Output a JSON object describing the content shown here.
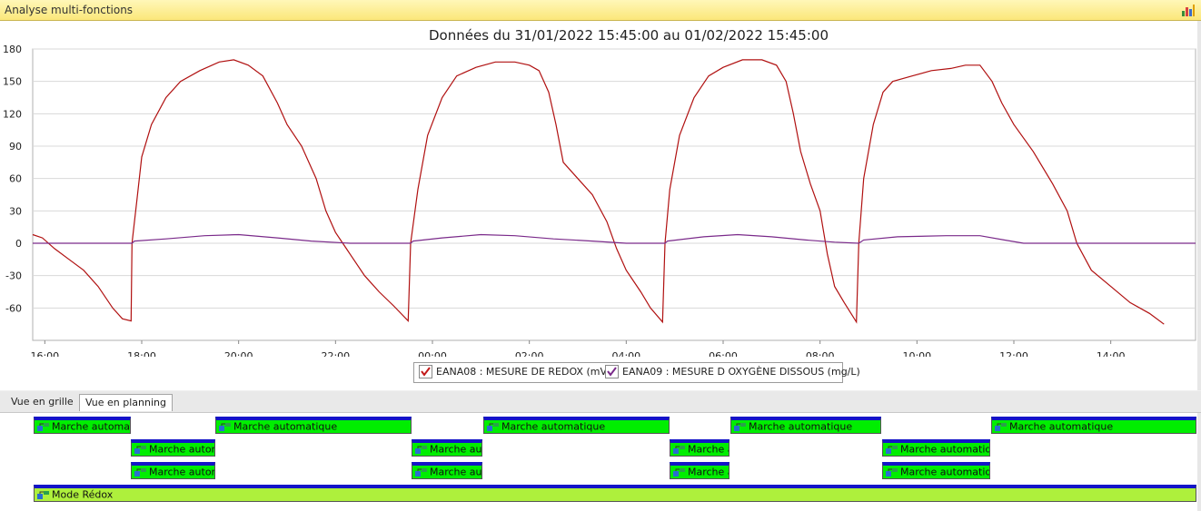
{
  "window": {
    "title": "Analyse multi-fonctions",
    "icon": "bar-chart-icon"
  },
  "chart_data": {
    "type": "line",
    "title": "Données du 31/01/2022 15:45:00 au 01/02/2022 15:45:00",
    "xlabel": "",
    "ylabel": "",
    "x_range_hours": [
      15.75,
      39.75
    ],
    "xticks": [
      {
        "label": "16:00",
        "h": 16
      },
      {
        "label": "18:00",
        "h": 18
      },
      {
        "label": "20:00",
        "h": 20
      },
      {
        "label": "22:00",
        "h": 22
      },
      {
        "label": "00:00",
        "h": 24
      },
      {
        "label": "02:00",
        "h": 26
      },
      {
        "label": "04:00",
        "h": 28
      },
      {
        "label": "06:00",
        "h": 30
      },
      {
        "label": "08:00",
        "h": 32
      },
      {
        "label": "10:00",
        "h": 34
      },
      {
        "label": "12:00",
        "h": 36
      },
      {
        "label": "14:00",
        "h": 38
      }
    ],
    "ylim": [
      -90,
      180
    ],
    "yticks": [
      180,
      150,
      120,
      90,
      60,
      30,
      0,
      -30,
      -60
    ],
    "grid": true,
    "legend_position": "bottom",
    "series": [
      {
        "name": "EANA08 : MESURE DE REDOX (mV)",
        "color": "#b01010",
        "points": [
          [
            15.75,
            8
          ],
          [
            15.95,
            5
          ],
          [
            16.2,
            -5
          ],
          [
            16.5,
            -15
          ],
          [
            16.8,
            -25
          ],
          [
            17.1,
            -40
          ],
          [
            17.4,
            -60
          ],
          [
            17.6,
            -70
          ],
          [
            17.78,
            -72
          ],
          [
            17.8,
            0
          ],
          [
            17.9,
            40
          ],
          [
            18.0,
            80
          ],
          [
            18.2,
            110
          ],
          [
            18.5,
            135
          ],
          [
            18.8,
            150
          ],
          [
            19.2,
            160
          ],
          [
            19.6,
            168
          ],
          [
            19.9,
            170
          ],
          [
            20.2,
            165
          ],
          [
            20.5,
            155
          ],
          [
            20.8,
            130
          ],
          [
            21.0,
            110
          ],
          [
            21.3,
            90
          ],
          [
            21.6,
            60
          ],
          [
            21.8,
            30
          ],
          [
            22.0,
            10
          ],
          [
            22.3,
            -10
          ],
          [
            22.6,
            -30
          ],
          [
            22.9,
            -45
          ],
          [
            23.2,
            -58
          ],
          [
            23.5,
            -72
          ],
          [
            23.55,
            0
          ],
          [
            23.7,
            50
          ],
          [
            23.9,
            100
          ],
          [
            24.2,
            135
          ],
          [
            24.5,
            155
          ],
          [
            24.9,
            163
          ],
          [
            25.3,
            168
          ],
          [
            25.7,
            168
          ],
          [
            26.0,
            165
          ],
          [
            26.2,
            160
          ],
          [
            26.4,
            140
          ],
          [
            26.55,
            110
          ],
          [
            26.7,
            75
          ],
          [
            27.0,
            60
          ],
          [
            27.3,
            45
          ],
          [
            27.6,
            20
          ],
          [
            27.8,
            -5
          ],
          [
            28.0,
            -25
          ],
          [
            28.3,
            -45
          ],
          [
            28.5,
            -60
          ],
          [
            28.75,
            -73
          ],
          [
            28.8,
            0
          ],
          [
            28.9,
            50
          ],
          [
            29.1,
            100
          ],
          [
            29.4,
            135
          ],
          [
            29.7,
            155
          ],
          [
            30.0,
            163
          ],
          [
            30.4,
            170
          ],
          [
            30.8,
            170
          ],
          [
            31.1,
            165
          ],
          [
            31.3,
            150
          ],
          [
            31.45,
            120
          ],
          [
            31.6,
            85
          ],
          [
            31.8,
            55
          ],
          [
            32.0,
            30
          ],
          [
            32.15,
            -10
          ],
          [
            32.3,
            -40
          ],
          [
            32.5,
            -55
          ],
          [
            32.75,
            -73
          ],
          [
            32.8,
            0
          ],
          [
            32.9,
            60
          ],
          [
            33.1,
            110
          ],
          [
            33.3,
            140
          ],
          [
            33.5,
            150
          ],
          [
            33.9,
            155
          ],
          [
            34.3,
            160
          ],
          [
            34.7,
            162
          ],
          [
            35.0,
            165
          ],
          [
            35.3,
            165
          ],
          [
            35.55,
            150
          ],
          [
            35.75,
            130
          ],
          [
            36.0,
            110
          ],
          [
            36.4,
            85
          ],
          [
            36.8,
            55
          ],
          [
            37.1,
            30
          ],
          [
            37.3,
            0
          ],
          [
            37.6,
            -25
          ],
          [
            38.0,
            -40
          ],
          [
            38.4,
            -55
          ],
          [
            38.8,
            -65
          ],
          [
            39.1,
            -75
          ]
        ]
      },
      {
        "name": "EANA09 : MESURE D OXYGÈNE DISSOUS (mg/L)",
        "color": "#7a2a8a",
        "points": [
          [
            15.75,
            0
          ],
          [
            17.8,
            0
          ],
          [
            17.85,
            2
          ],
          [
            18.5,
            4
          ],
          [
            19.3,
            7
          ],
          [
            20.0,
            8
          ],
          [
            20.8,
            5
          ],
          [
            21.5,
            2
          ],
          [
            22.3,
            0
          ],
          [
            23.55,
            0
          ],
          [
            23.6,
            2
          ],
          [
            24.2,
            5
          ],
          [
            25.0,
            8
          ],
          [
            25.7,
            7
          ],
          [
            26.5,
            4
          ],
          [
            27.3,
            2
          ],
          [
            28.0,
            0
          ],
          [
            28.8,
            0
          ],
          [
            28.85,
            2
          ],
          [
            29.6,
            6
          ],
          [
            30.3,
            8
          ],
          [
            31.0,
            6
          ],
          [
            31.7,
            3
          ],
          [
            32.3,
            1
          ],
          [
            32.8,
            0
          ],
          [
            32.9,
            3
          ],
          [
            33.6,
            6
          ],
          [
            34.6,
            7
          ],
          [
            35.3,
            7
          ],
          [
            35.8,
            3
          ],
          [
            36.2,
            0
          ],
          [
            39.75,
            0
          ]
        ]
      }
    ]
  },
  "tabs": [
    {
      "label": "Vue en grille",
      "active": false
    },
    {
      "label": "Vue en planning",
      "active": true
    }
  ],
  "planning": {
    "marche": "Marche automatique",
    "redox": "Mode Rédox"
  }
}
